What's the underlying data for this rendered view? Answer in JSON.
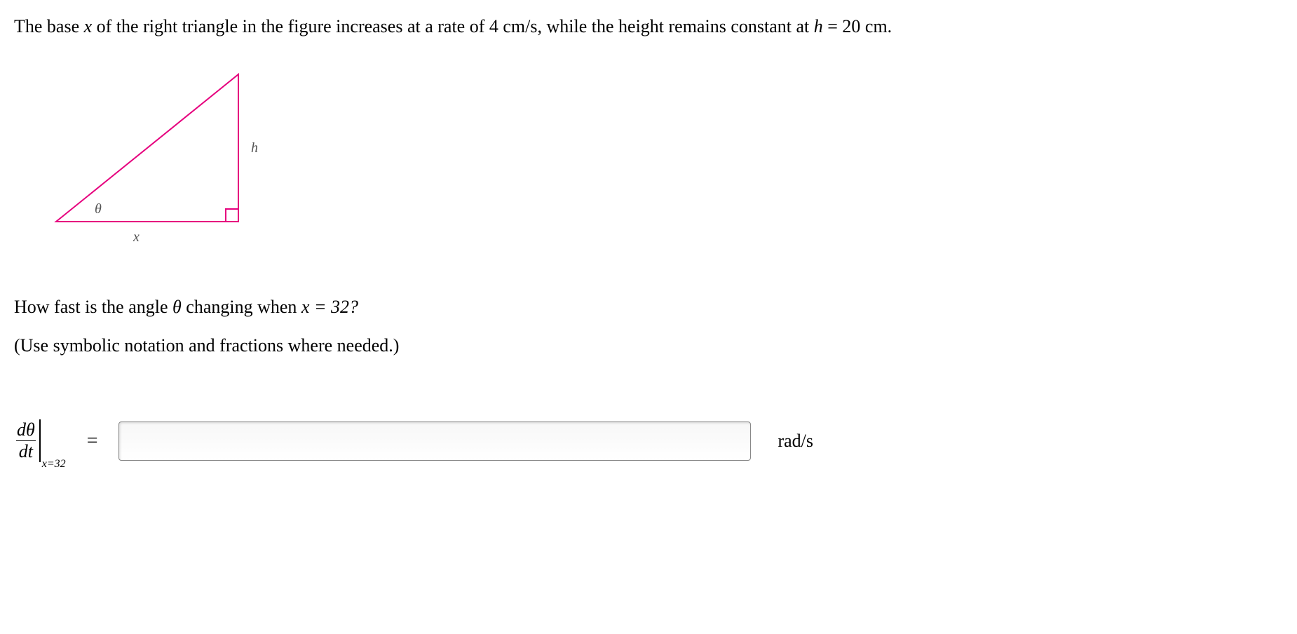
{
  "problem": {
    "text_prefix": "The base ",
    "var_x": "x",
    "text_mid1": " of the right triangle in the figure increases at a rate of ",
    "rate": "4 cm/s",
    "text_mid2": ", while the height remains constant at ",
    "var_h": "h",
    "eq": " = ",
    "height_val": "20 cm.",
    "question_prefix": "How fast is the angle ",
    "var_theta": "θ",
    "question_mid": " changing when ",
    "question_eq": "x = 32?",
    "instruction": "(Use symbolic notation and fractions where needed.)"
  },
  "figure": {
    "stroke_color": "#e6007e",
    "stroke_width": 2,
    "label_theta": "θ",
    "label_x": "x",
    "label_h": "h",
    "label_font": "italic 18px Georgia",
    "points": {
      "A": [
        20,
        230
      ],
      "B": [
        280,
        230
      ],
      "C": [
        280,
        20
      ]
    },
    "right_angle_size": 18
  },
  "answer": {
    "frac_num": "dθ",
    "frac_den": "dt",
    "eval_at": "x=32",
    "equals": "=",
    "input_value": "",
    "unit": "rad/s"
  }
}
